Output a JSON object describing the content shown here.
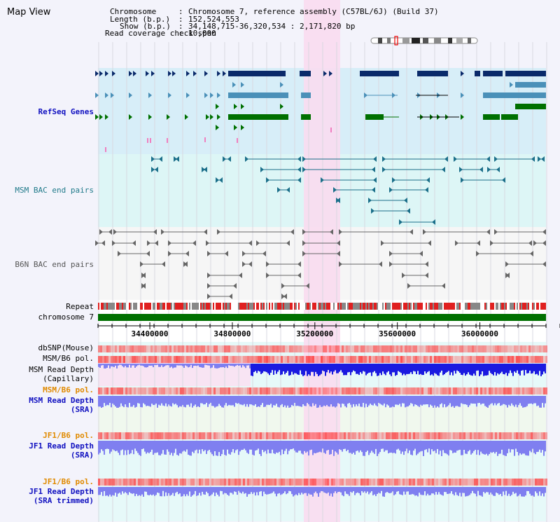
{
  "title": "Map View",
  "info": {
    "chromosome_key": "Chromosome",
    "chromosome_val": "Chromosome 7, reference assembly (C57BL/6J) (Build 37)",
    "length_key": "Length (b.p.)",
    "length_val": "152,524,553",
    "show_key": "Show (b.p.)",
    "show_val": "34,148,715-36,320,534 : 2,171,820 bp",
    "span_key": "Read coverage check span",
    "span_val": "10,000"
  },
  "labels": {
    "refseq": "RefSeq Genes",
    "msm_bac": "MSM BAC end pairs",
    "b6n_bac": "B6N BAC end pairs",
    "repeat": "Repeat",
    "chromosome": "chromosome 7",
    "dbsnp": "dbSNP(Mouse)",
    "msm_b6_pol_1": "MSM/B6 pol.",
    "msm_depth_cap_1": "MSM Read Depth",
    "msm_depth_cap_2": "(Capillary)",
    "msm_b6_pol_2": "MSM/B6 pol.",
    "msm_depth_sra_1": "MSM Read Depth",
    "msm_depth_sra_2": "(SRA)",
    "jf1_b6_pol_1": "JF1/B6 pol.",
    "jf1_depth_1": "JF1 Read Depth",
    "jf1_depth_2": "(SRA)",
    "jf1_b6_pol_2": "JF1/B6 pol.",
    "jf1_trim_1": "JF1 Read Depth",
    "jf1_trim_2": "(SRA trimmed)"
  },
  "axis": {
    "ticks": [
      "34400000",
      "34800000",
      "35200000",
      "35600000",
      "36000000"
    ],
    "tick_values": [
      34400000,
      34800000,
      35200000,
      35600000,
      36000000
    ],
    "view_start": 34148715,
    "view_end": 36320534
  },
  "colors": {
    "refseq_bg": "#d7eef8",
    "msm_bac_bg": "#ddf6f6",
    "highlight": "#fadcf0",
    "gene_navy": "#0a2a6a",
    "gene_teal": "#4a90b8",
    "gene_green": "#007000",
    "bac_teal": "#1b6f8a",
    "bac_gray": "#666666",
    "chrom_green": "#007000",
    "depth_blue": "#7f7ff0",
    "depth_capillary": "#1a1ae0"
  }
}
